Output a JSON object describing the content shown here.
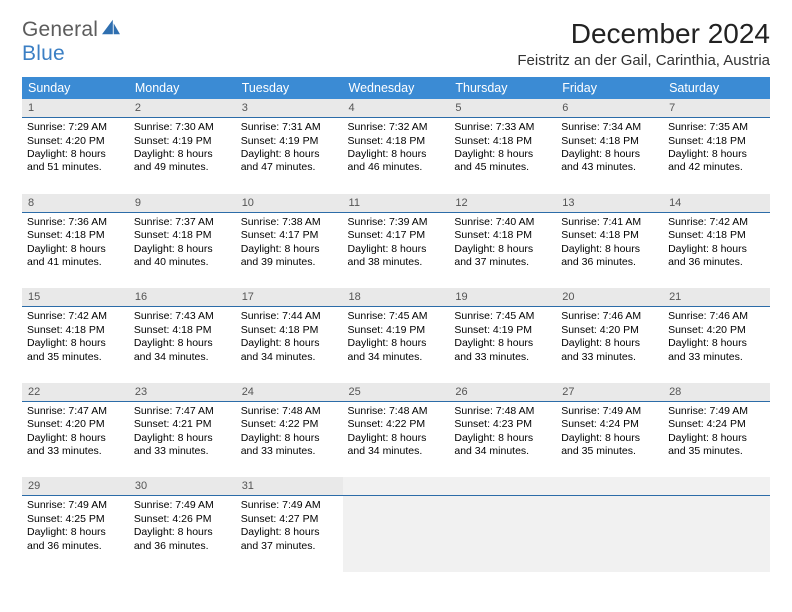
{
  "brand": {
    "line1": "General",
    "line2": "Blue"
  },
  "title": "December 2024",
  "location": "Feistritz an der Gail, Carinthia, Austria",
  "colors": {
    "header_bg": "#3b8bd4",
    "header_text": "#ffffff",
    "daynum_bg": "#e9e9e9",
    "daynum_text": "#555555",
    "cell_border": "#2c6ca8",
    "empty_bg": "#f1f1f1",
    "brand_gray": "#5c5c5c",
    "brand_blue": "#3b7fc4"
  },
  "weekdays": [
    "Sunday",
    "Monday",
    "Tuesday",
    "Wednesday",
    "Thursday",
    "Friday",
    "Saturday"
  ],
  "weeks": [
    [
      {
        "n": "1",
        "sr": "7:29 AM",
        "ss": "4:20 PM",
        "dlh": "8",
        "dlm": "51"
      },
      {
        "n": "2",
        "sr": "7:30 AM",
        "ss": "4:19 PM",
        "dlh": "8",
        "dlm": "49"
      },
      {
        "n": "3",
        "sr": "7:31 AM",
        "ss": "4:19 PM",
        "dlh": "8",
        "dlm": "47"
      },
      {
        "n": "4",
        "sr": "7:32 AM",
        "ss": "4:18 PM",
        "dlh": "8",
        "dlm": "46"
      },
      {
        "n": "5",
        "sr": "7:33 AM",
        "ss": "4:18 PM",
        "dlh": "8",
        "dlm": "45"
      },
      {
        "n": "6",
        "sr": "7:34 AM",
        "ss": "4:18 PM",
        "dlh": "8",
        "dlm": "43"
      },
      {
        "n": "7",
        "sr": "7:35 AM",
        "ss": "4:18 PM",
        "dlh": "8",
        "dlm": "42"
      }
    ],
    [
      {
        "n": "8",
        "sr": "7:36 AM",
        "ss": "4:18 PM",
        "dlh": "8",
        "dlm": "41"
      },
      {
        "n": "9",
        "sr": "7:37 AM",
        "ss": "4:18 PM",
        "dlh": "8",
        "dlm": "40"
      },
      {
        "n": "10",
        "sr": "7:38 AM",
        "ss": "4:17 PM",
        "dlh": "8",
        "dlm": "39"
      },
      {
        "n": "11",
        "sr": "7:39 AM",
        "ss": "4:17 PM",
        "dlh": "8",
        "dlm": "38"
      },
      {
        "n": "12",
        "sr": "7:40 AM",
        "ss": "4:18 PM",
        "dlh": "8",
        "dlm": "37"
      },
      {
        "n": "13",
        "sr": "7:41 AM",
        "ss": "4:18 PM",
        "dlh": "8",
        "dlm": "36"
      },
      {
        "n": "14",
        "sr": "7:42 AM",
        "ss": "4:18 PM",
        "dlh": "8",
        "dlm": "36"
      }
    ],
    [
      {
        "n": "15",
        "sr": "7:42 AM",
        "ss": "4:18 PM",
        "dlh": "8",
        "dlm": "35"
      },
      {
        "n": "16",
        "sr": "7:43 AM",
        "ss": "4:18 PM",
        "dlh": "8",
        "dlm": "34"
      },
      {
        "n": "17",
        "sr": "7:44 AM",
        "ss": "4:18 PM",
        "dlh": "8",
        "dlm": "34"
      },
      {
        "n": "18",
        "sr": "7:45 AM",
        "ss": "4:19 PM",
        "dlh": "8",
        "dlm": "34"
      },
      {
        "n": "19",
        "sr": "7:45 AM",
        "ss": "4:19 PM",
        "dlh": "8",
        "dlm": "33"
      },
      {
        "n": "20",
        "sr": "7:46 AM",
        "ss": "4:20 PM",
        "dlh": "8",
        "dlm": "33"
      },
      {
        "n": "21",
        "sr": "7:46 AM",
        "ss": "4:20 PM",
        "dlh": "8",
        "dlm": "33"
      }
    ],
    [
      {
        "n": "22",
        "sr": "7:47 AM",
        "ss": "4:20 PM",
        "dlh": "8",
        "dlm": "33"
      },
      {
        "n": "23",
        "sr": "7:47 AM",
        "ss": "4:21 PM",
        "dlh": "8",
        "dlm": "33"
      },
      {
        "n": "24",
        "sr": "7:48 AM",
        "ss": "4:22 PM",
        "dlh": "8",
        "dlm": "33"
      },
      {
        "n": "25",
        "sr": "7:48 AM",
        "ss": "4:22 PM",
        "dlh": "8",
        "dlm": "34"
      },
      {
        "n": "26",
        "sr": "7:48 AM",
        "ss": "4:23 PM",
        "dlh": "8",
        "dlm": "34"
      },
      {
        "n": "27",
        "sr": "7:49 AM",
        "ss": "4:24 PM",
        "dlh": "8",
        "dlm": "35"
      },
      {
        "n": "28",
        "sr": "7:49 AM",
        "ss": "4:24 PM",
        "dlh": "8",
        "dlm": "35"
      }
    ],
    [
      {
        "n": "29",
        "sr": "7:49 AM",
        "ss": "4:25 PM",
        "dlh": "8",
        "dlm": "36"
      },
      {
        "n": "30",
        "sr": "7:49 AM",
        "ss": "4:26 PM",
        "dlh": "8",
        "dlm": "36"
      },
      {
        "n": "31",
        "sr": "7:49 AM",
        "ss": "4:27 PM",
        "dlh": "8",
        "dlm": "37"
      },
      {
        "empty": true
      },
      {
        "empty": true
      },
      {
        "empty": true
      },
      {
        "empty": true
      }
    ]
  ],
  "labels": {
    "sunrise": "Sunrise:",
    "sunset": "Sunset:",
    "daylight": "Daylight:",
    "hours": "hours",
    "and": "and",
    "minutes": "minutes."
  }
}
